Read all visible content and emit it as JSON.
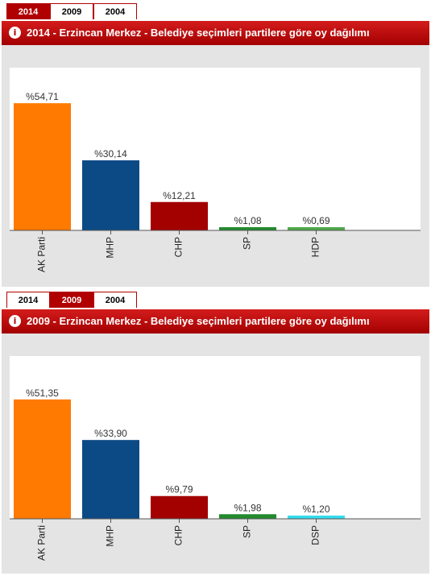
{
  "tabs": [
    "2014",
    "2009",
    "2004"
  ],
  "panels": [
    {
      "active_tab": "2014",
      "title": "2014 - Erzincan Merkez - Belediye seçimleri partilere göre oy dağılımı"
    },
    {
      "active_tab": "2009",
      "title": "2009 - Erzincan Merkez - Belediye seçimleri partilere göre oy dağılımı"
    }
  ],
  "chart_data": [
    {
      "type": "bar",
      "title": "2014 - Erzincan Merkez - Belediye seçimleri partilere göre oy dağılımı",
      "categories": [
        "AK Parti",
        "MHP",
        "CHP",
        "SP",
        "HDP"
      ],
      "values": [
        54.71,
        30.14,
        12.21,
        1.08,
        0.69
      ],
      "labels": [
        "%54,71",
        "%30,14",
        "%12,21",
        "%1,08",
        "%0,69"
      ],
      "colors": [
        "#ff7a00",
        "#0c4a85",
        "#a30000",
        "#238a2e",
        "#4fa84a"
      ],
      "ylim": [
        0,
        70
      ],
      "grid": false,
      "legend": "none"
    },
    {
      "type": "bar",
      "title": "2009 - Erzincan Merkez - Belediye seçimleri partilere göre oy dağılımı",
      "categories": [
        "AK Parti",
        "MHP",
        "CHP",
        "SP",
        "DSP"
      ],
      "values": [
        51.35,
        33.9,
        9.79,
        1.98,
        1.2
      ],
      "labels": [
        "%51,35",
        "%33,90",
        "%9,79",
        "%1,98",
        "%1,20"
      ],
      "colors": [
        "#ff7a00",
        "#0c4a85",
        "#a30000",
        "#238a2e",
        "#33ddee"
      ],
      "ylim": [
        0,
        70
      ],
      "grid": false,
      "legend": "none"
    }
  ]
}
